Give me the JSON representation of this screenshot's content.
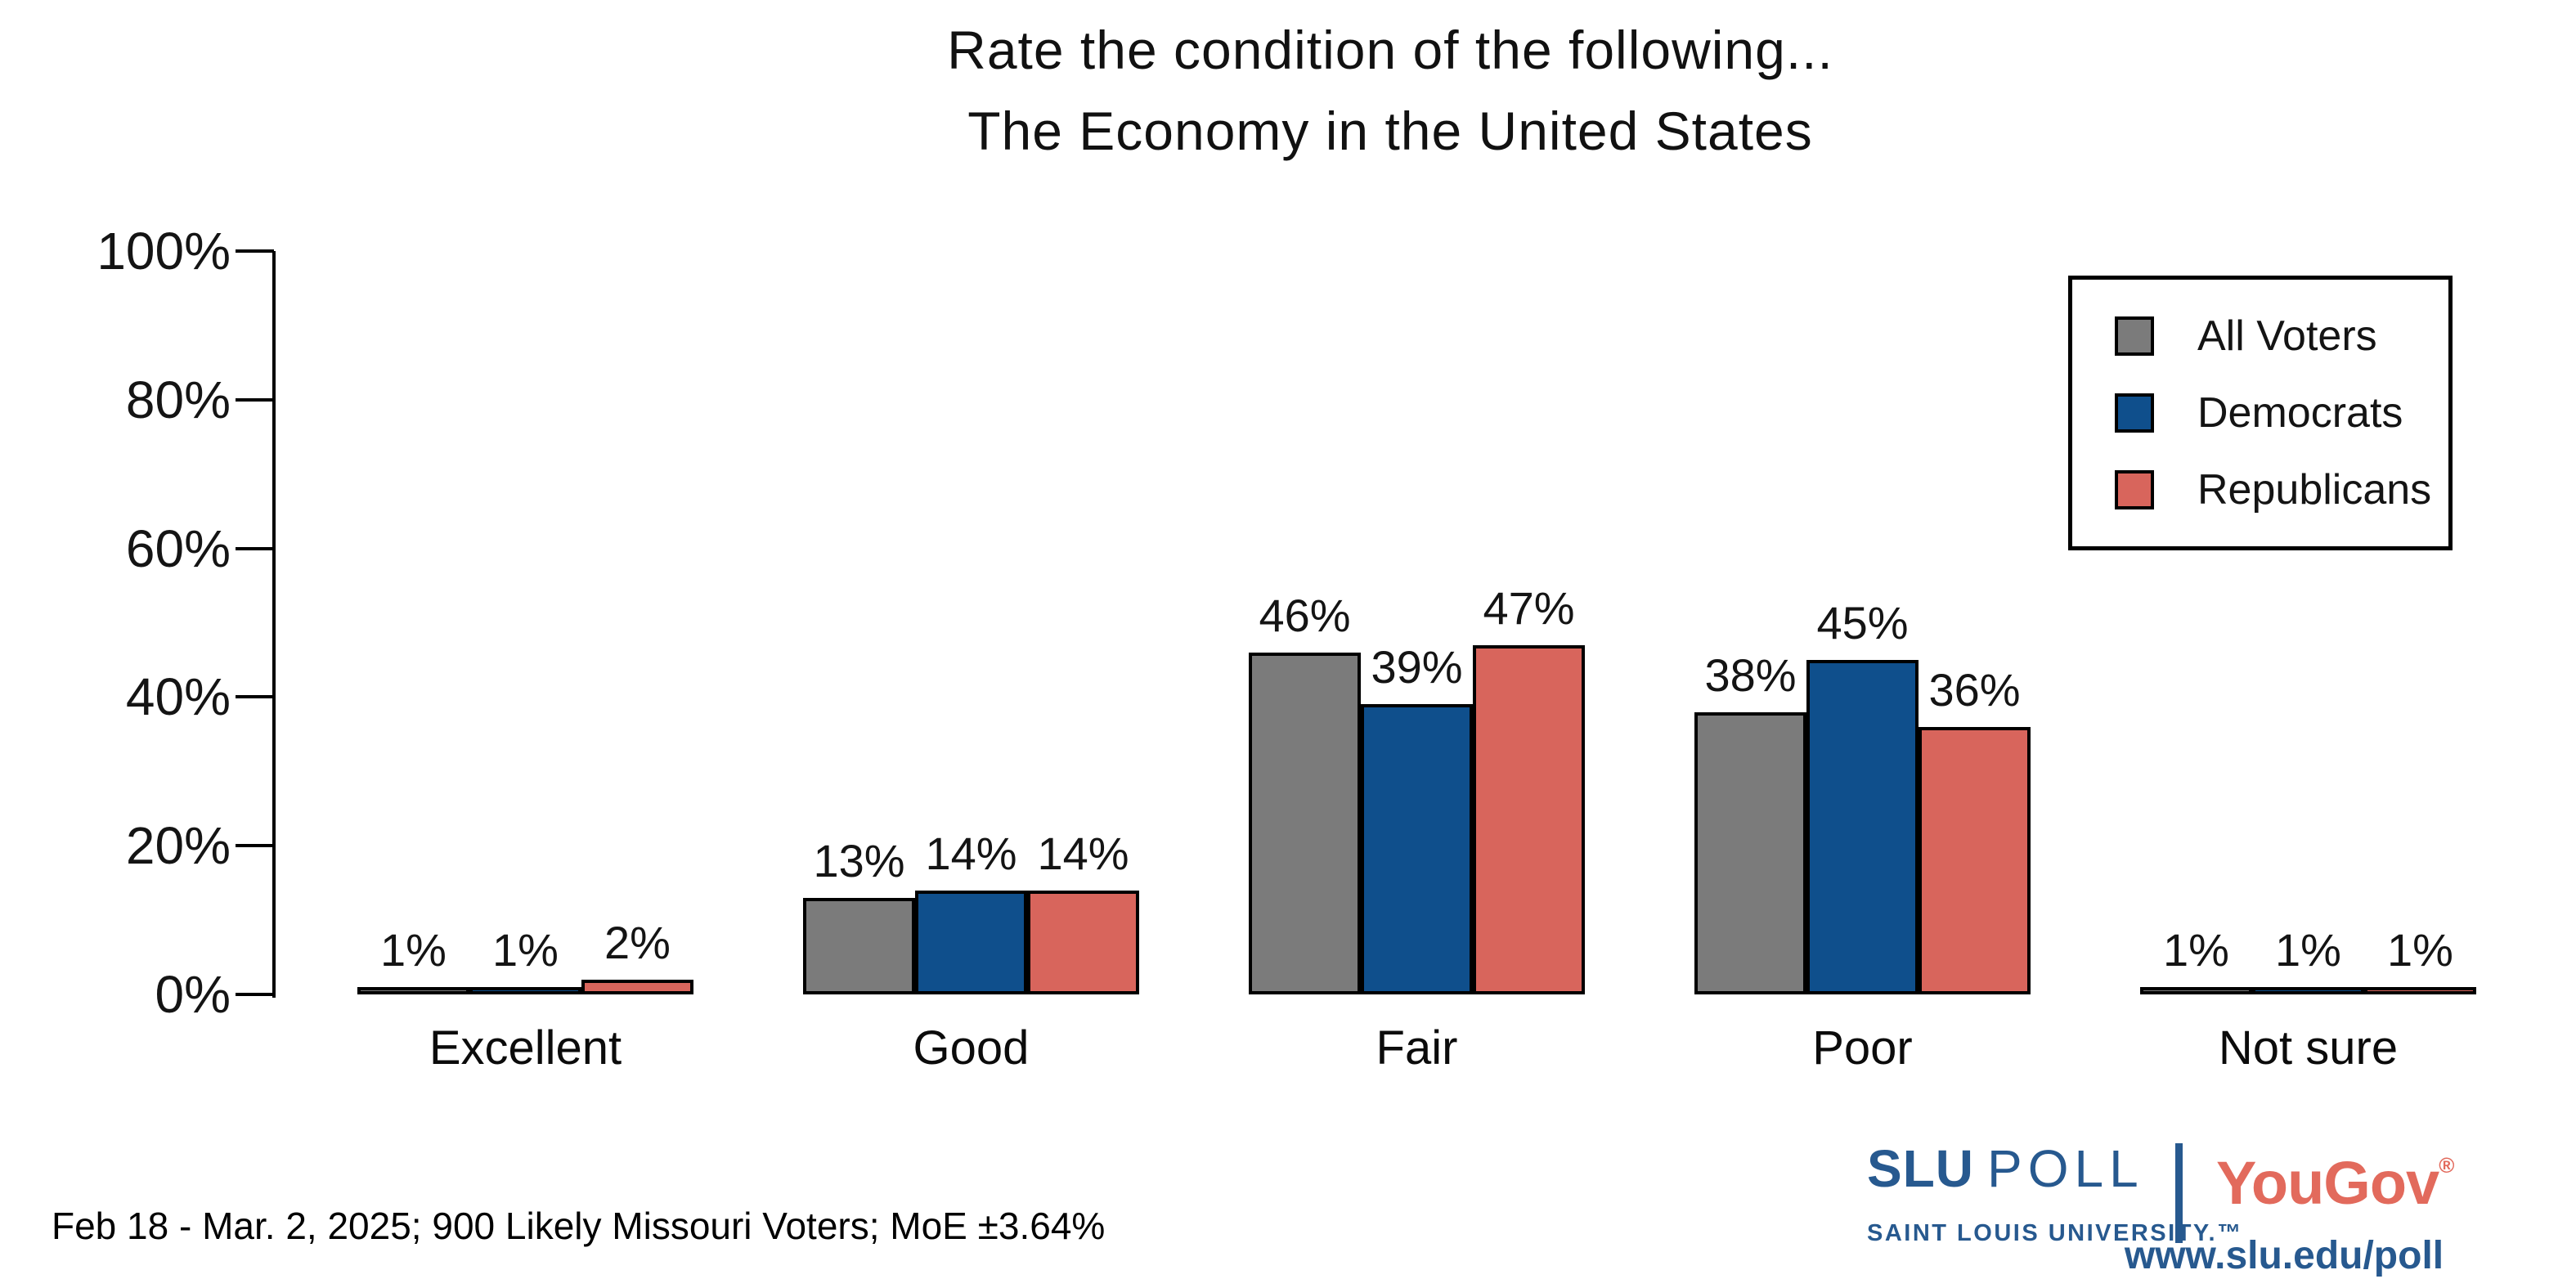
{
  "title": {
    "line1": "Rate the condition of the following...",
    "line2": "The Economy in the United States"
  },
  "chart_data": {
    "type": "bar",
    "title": "Rate the condition of the following... The Economy in the United States",
    "categories": [
      "Excellent",
      "Good",
      "Fair",
      "Poor",
      "Not sure"
    ],
    "series": [
      {
        "name": "All Voters",
        "color": "#7B7B7B",
        "values": [
          1,
          13,
          46,
          38,
          1
        ]
      },
      {
        "name": "Democrats",
        "color": "#0F4F8C",
        "values": [
          1,
          14,
          39,
          45,
          1
        ]
      },
      {
        "name": "Republicans",
        "color": "#D8655C",
        "values": [
          2,
          14,
          47,
          36,
          1
        ]
      }
    ],
    "value_labels": {
      "Excellent": [
        "1%",
        "1%",
        "2%"
      ],
      "Good": [
        "13%",
        "14%",
        "14%"
      ],
      "Fair": [
        "46%",
        "39%",
        "47%"
      ],
      "Poor": [
        "38%",
        "45%",
        "36%"
      ],
      "Not sure": [
        "1%",
        "1%",
        "1%"
      ]
    },
    "value_suffix": "%",
    "ylabel": "",
    "xlabel": "",
    "ylim": [
      0,
      100
    ],
    "yticks": [
      "100%",
      "80%",
      "60%",
      "40%",
      "20%",
      "0%"
    ],
    "grid": false,
    "legend_position": "upper right",
    "bar_outline_color": "#000000"
  },
  "footnote": "Feb 18 - Mar. 2, 2025; 900 Likely Missouri Voters; MoE ±3.64%",
  "branding": {
    "slu_bold": "SLU",
    "slu_light": "POLL",
    "slu_sub": "SAINT LOUIS UNIVERSITY.™",
    "partner": "YouGov",
    "partner_reg": "®",
    "url": "www.slu.edu/poll",
    "slu_blue": "#27598F",
    "yougov_red": "#E26A5C"
  }
}
